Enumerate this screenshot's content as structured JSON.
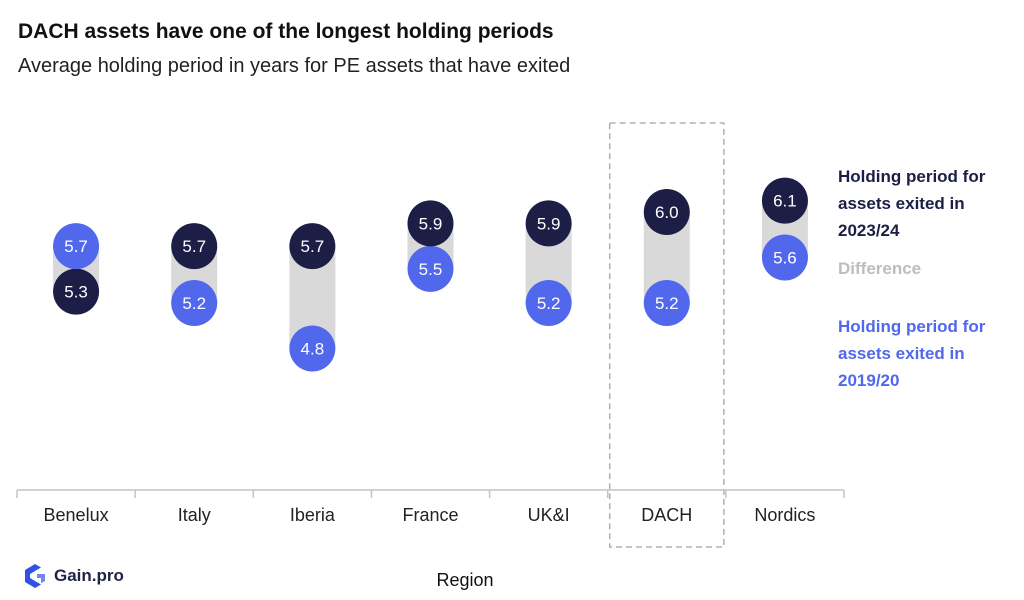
{
  "title": "DACH assets have one of the longest holding periods",
  "subtitle": "Average holding period in years for PE assets that have exited",
  "colors": {
    "period_2023_24": "#1c1e45",
    "period_2019_20": "#5168ec",
    "difference": "#d9d9d9",
    "highlight_border": "#b0b0b0",
    "axis": "#c4c4c4"
  },
  "legend": {
    "period_2023_24": "Holding period for assets exited in 2023/24",
    "difference": "Difference",
    "period_2019_20": "Holding period for assets exited in 2019/20"
  },
  "brand": {
    "icon": "gainpro-logo-icon",
    "name": "Gain.pro"
  },
  "chart_data": {
    "type": "dumbbell",
    "xlabel": "Region",
    "ylabel": "",
    "ylim": [
      4.0,
      6.5
    ],
    "grid": false,
    "legend_position": "right",
    "categories": [
      "Benelux",
      "Italy",
      "Iberia",
      "France",
      "UK&I",
      "DACH",
      "Nordics"
    ],
    "highlight": "DACH",
    "series": [
      {
        "name": "Holding period for assets exited in 2023/24",
        "values": [
          5.3,
          5.7,
          5.7,
          5.9,
          5.9,
          6.0,
          6.1
        ]
      },
      {
        "name": "Holding period for assets exited in 2019/20",
        "values": [
          5.7,
          5.2,
          4.8,
          5.5,
          5.2,
          5.2,
          5.6
        ]
      }
    ]
  }
}
